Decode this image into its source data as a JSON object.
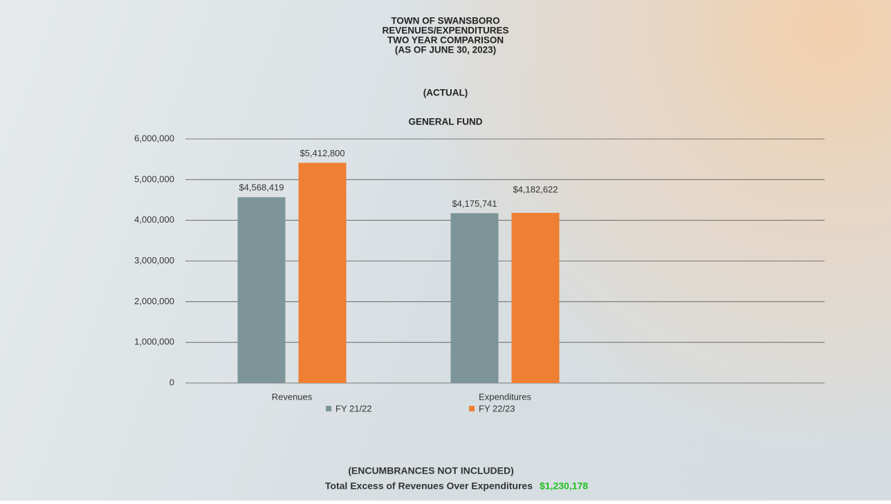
{
  "chart_data": {
    "type": "bar",
    "title": [
      "TOWN OF SWANSBORO",
      "REVENUES/EXPENDITURES",
      "TWO YEAR COMPARISON",
      "(AS OF JUNE 30, 2023)"
    ],
    "subtitle": "(ACTUAL)",
    "fund": "GENERAL FUND",
    "categories": [
      "Revenues",
      "Expenditures",
      null
    ],
    "series": [
      {
        "name": "FY 21/22",
        "color": "#7d9599",
        "values": [
          4568419,
          4175741,
          null
        ],
        "value_labels": [
          "$4,568,419",
          "$4,175,741",
          null
        ]
      },
      {
        "name": "FY 22/23",
        "color": "#ee7f33",
        "values": [
          5412800,
          4182622,
          null
        ],
        "value_labels": [
          "$5,412,800",
          "$4,182,622",
          null
        ]
      }
    ],
    "ylim": [
      0,
      6000000
    ],
    "yticks": [
      0,
      {
        "value": 1000000,
        "label": "1,000,000"
      },
      {
        "value": 2000000,
        "label": "2,000,000"
      },
      {
        "value": 3000000,
        "label": "3,000,000"
      },
      {
        "value": 4000000,
        "label": "4,000,000"
      },
      {
        "value": 5000000,
        "label": "5,000,000"
      },
      {
        "value": 6000000,
        "label": "6,000,000"
      }
    ],
    "grid": true,
    "legend": "bottom",
    "note": "(ENCUMBRANCES NOT INCLUDED)",
    "footer_label": "Total Excess of Revenues Over Expenditures",
    "footer_value": "$1,230,178"
  }
}
